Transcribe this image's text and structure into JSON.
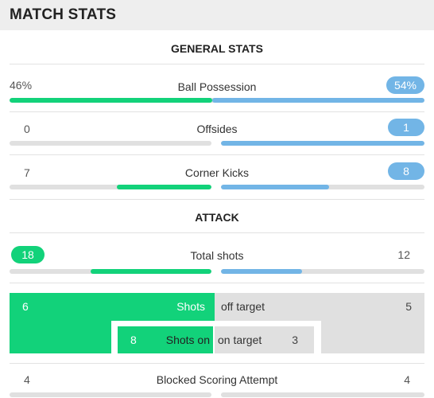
{
  "header": {
    "title": "MATCH STATS"
  },
  "sections": {
    "general": "GENERAL STATS",
    "attack": "ATTACK"
  },
  "stats": {
    "possession": {
      "label": "Ball Possession",
      "home": "46%",
      "away": "54%",
      "home_fraction": 0.46,
      "away_fraction": 0.54
    },
    "offsides": {
      "label": "Offsides",
      "home": "0",
      "away": "1",
      "home_fraction": 0.0,
      "away_fraction": 1.0
    },
    "corners": {
      "label": "Corner Kicks",
      "home": "7",
      "away": "8",
      "home_fraction": 0.47,
      "away_fraction": 0.53
    },
    "total_shots": {
      "label": "Total shots",
      "home": "18",
      "away": "12",
      "home_fraction": 0.6,
      "away_fraction": 0.4
    },
    "shots_off": {
      "label_home": "Shots",
      "label_away": "off target",
      "home": "6",
      "away": "5"
    },
    "shots_on": {
      "label_home": "Shots on",
      "label_away": "on target",
      "home": "8",
      "away": "3"
    },
    "blocked": {
      "label": "Blocked Scoring Attempt",
      "home": "4",
      "away": "4"
    }
  },
  "colors": {
    "home": "#12d27a",
    "away": "#72b5e6",
    "track": "#e0e0e0"
  }
}
